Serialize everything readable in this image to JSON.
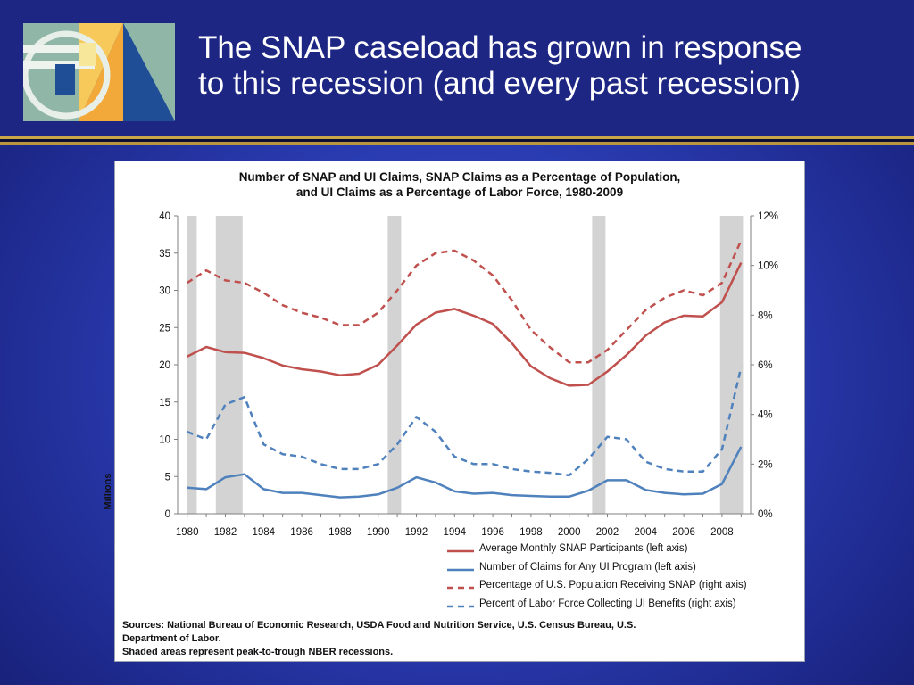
{
  "slide": {
    "title_line1": "The SNAP caseload has grown in response",
    "title_line2": "to this recession (and every past recession)"
  },
  "colors": {
    "snap": "#c0504d",
    "ui": "#4f81bd",
    "recession": "#d3d3d3",
    "header_bg": "#1d2683",
    "gold_rule": "#c9a648"
  },
  "chart_data": {
    "type": "line",
    "title_line1": "Number of SNAP and UI Claims, SNAP Claims as a Percentage of Population,",
    "title_line2": "and UI Claims as a Percentage of Labor Force, 1980-2009",
    "ylabel_left": "Millions",
    "ylabel_right": "",
    "xlabel": "",
    "ylim_left": [
      0,
      40
    ],
    "ylim_right": [
      0,
      12
    ],
    "yticks_left": [
      "0",
      "5",
      "10",
      "15",
      "20",
      "25",
      "30",
      "35",
      "40"
    ],
    "yticks_right": [
      "0%",
      "2%",
      "4%",
      "6%",
      "8%",
      "10%",
      "12%"
    ],
    "xticks": [
      "1980",
      "1982",
      "1984",
      "1986",
      "1988",
      "1990",
      "1992",
      "1994",
      "1996",
      "1998",
      "2000",
      "2002",
      "2004",
      "2006",
      "2008"
    ],
    "x": [
      1980,
      1981,
      1982,
      1983,
      1984,
      1985,
      1986,
      1987,
      1988,
      1989,
      1990,
      1991,
      1992,
      1993,
      1994,
      1995,
      1996,
      1997,
      1998,
      1999,
      2000,
      2001,
      2002,
      2003,
      2004,
      2005,
      2006,
      2007,
      2008,
      2009
    ],
    "recessions": [
      [
        1980.0,
        1980.5
      ],
      [
        1981.5,
        1982.9
      ],
      [
        1990.5,
        1991.2
      ],
      [
        2001.2,
        2001.9
      ],
      [
        2007.9,
        2009.1
      ]
    ],
    "series": [
      {
        "name": "Average Monthly SNAP Participants (left axis)",
        "axis": "left",
        "style": "solid",
        "color": "#c0504d",
        "values": [
          21.1,
          22.4,
          21.7,
          21.6,
          20.9,
          19.9,
          19.4,
          19.1,
          18.6,
          18.8,
          20.0,
          22.6,
          25.4,
          27.0,
          27.5,
          26.6,
          25.5,
          22.9,
          19.8,
          18.2,
          17.2,
          17.3,
          19.1,
          21.3,
          23.9,
          25.7,
          26.6,
          26.5,
          28.4,
          33.7
        ]
      },
      {
        "name": "Number of Claims for Any UI Program (left axis)",
        "axis": "left",
        "style": "solid",
        "color": "#4f81bd",
        "values": [
          3.5,
          3.3,
          4.9,
          5.3,
          3.3,
          2.8,
          2.8,
          2.5,
          2.2,
          2.3,
          2.6,
          3.5,
          4.9,
          4.2,
          3.0,
          2.7,
          2.8,
          2.5,
          2.4,
          2.3,
          2.3,
          3.1,
          4.5,
          4.5,
          3.2,
          2.8,
          2.6,
          2.7,
          4.0,
          9.0
        ]
      },
      {
        "name": "Percentage of U.S. Population Receiving SNAP (right axis)",
        "axis": "right",
        "style": "dashed",
        "color": "#c0504d",
        "values": [
          9.3,
          9.8,
          9.4,
          9.3,
          8.9,
          8.4,
          8.1,
          7.9,
          7.6,
          7.6,
          8.1,
          9.0,
          10.0,
          10.5,
          10.6,
          10.2,
          9.6,
          8.6,
          7.4,
          6.7,
          6.1,
          6.1,
          6.6,
          7.4,
          8.2,
          8.7,
          9.0,
          8.8,
          9.3,
          11.0
        ]
      },
      {
        "name": "Percent of Labor Force Collecting UI Benefits (right axis)",
        "axis": "right",
        "style": "dashed",
        "color": "#4f81bd",
        "values": [
          3.3,
          3.0,
          4.4,
          4.7,
          2.8,
          2.4,
          2.3,
          2.0,
          1.8,
          1.8,
          2.0,
          2.8,
          3.9,
          3.3,
          2.3,
          2.0,
          2.0,
          1.8,
          1.7,
          1.65,
          1.55,
          2.2,
          3.1,
          3.0,
          2.1,
          1.8,
          1.7,
          1.7,
          2.6,
          5.9
        ]
      }
    ],
    "legend_position": "bottom-right",
    "grid": false,
    "source_line1": "Sources: National Bureau of Economic Research, USDA Food and Nutrition Service, U.S. Census Bureau, U.S.",
    "source_line2": "Department of Labor.",
    "note": "Shaded areas represent peak-to-trough NBER recessions."
  }
}
